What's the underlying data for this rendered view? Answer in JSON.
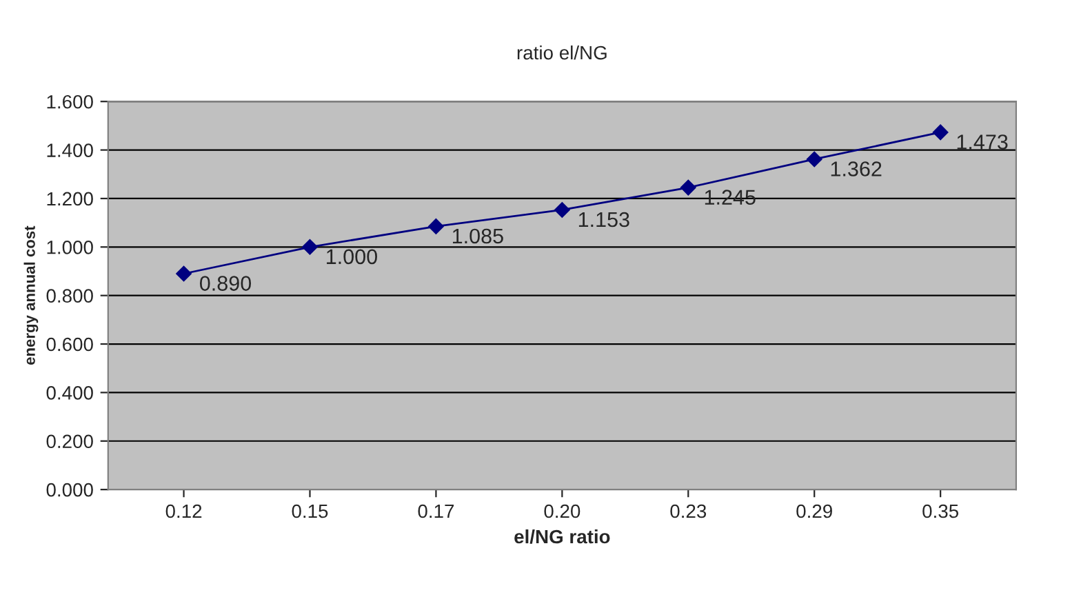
{
  "chart_data": {
    "type": "line",
    "title": "ratio el/NG",
    "xlabel": "el/NG ratio",
    "ylabel": "energy annual cost",
    "categories": [
      "0.12",
      "0.15",
      "0.17",
      "0.20",
      "0.23",
      "0.29",
      "0.35"
    ],
    "series": [
      {
        "color": "#000080",
        "values": [
          0.89,
          1.0,
          1.085,
          1.153,
          1.245,
          1.362,
          1.473
        ],
        "value_labels": [
          "0.890",
          "1.000",
          "1.085",
          "1.153",
          "1.245",
          "1.362",
          "1.473"
        ]
      }
    ],
    "ylim": [
      0,
      1.6
    ],
    "yticks": [
      {
        "value": 0,
        "label": "0.000"
      },
      {
        "value": 0.2,
        "label": "0.200"
      },
      {
        "value": 0.4,
        "label": "0.400"
      },
      {
        "value": 0.6,
        "label": "0.600"
      },
      {
        "value": 0.8,
        "label": "0.800"
      },
      {
        "value": 1.0,
        "label": "1.000"
      },
      {
        "value": 1.2,
        "label": "1.200"
      },
      {
        "value": 1.4,
        "label": "1.400"
      },
      {
        "value": 1.6,
        "label": "1.600"
      }
    ],
    "grid": "y",
    "marker": "diamond",
    "line_style": "solid"
  }
}
